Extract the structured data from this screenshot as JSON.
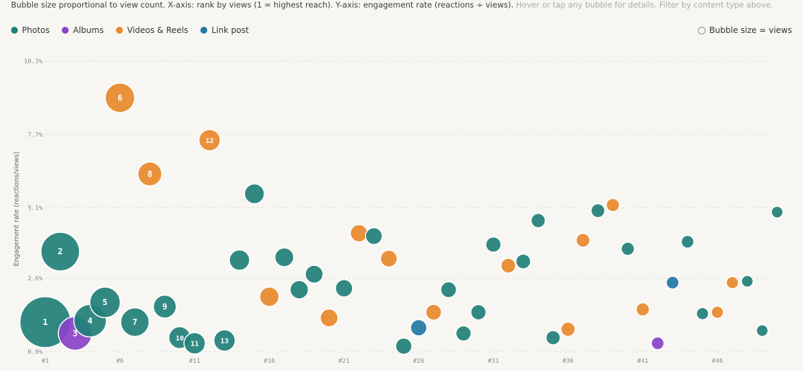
{
  "subtitle": {
    "text": "Bubble size proportional to view count. X-axis: rank by views (1 = highest reach). Y-axis: engagement rate (reactions ÷ views).",
    "hint": "Hover or tap any bubble for details. Filter by content type above."
  },
  "legend": [
    {
      "key": "photos",
      "label": "Photos",
      "color": "#21807a"
    },
    {
      "key": "albums",
      "label": "Albums",
      "color": "#8a44c8"
    },
    {
      "key": "videos",
      "label": "Videos & Reels",
      "color": "#e7892d"
    },
    {
      "key": "link",
      "label": "Link post",
      "color": "#2478a4"
    }
  ],
  "size_key": {
    "label": "Bubble size = views"
  },
  "chart_data": {
    "type": "scatter",
    "xlabel": "",
    "ylabel": "Engagement rate (reactions/views)",
    "xlim": [
      1,
      49.8
    ],
    "ylim": [
      0,
      10.3
    ],
    "x_ticks": [
      1,
      6,
      11,
      16,
      21,
      26,
      31,
      36,
      41,
      46
    ],
    "x_tick_labels": [
      "#1",
      "#6",
      "#11",
      "#16",
      "#21",
      "#26",
      "#31",
      "#36",
      "#41",
      "#46"
    ],
    "y_ticks": [
      0,
      2.6,
      5.1,
      7.7,
      10.3
    ],
    "y_tick_labels": [
      "0.0%",
      "2.6%",
      "5.1%",
      "7.7%",
      "10.3%"
    ],
    "grid": "horizontal-dashed",
    "points": [
      {
        "rank": 1,
        "rate": 1.05,
        "type": "photos",
        "label": "1",
        "size": 1.0
      },
      {
        "rank": 2,
        "rate": 3.55,
        "type": "photos",
        "label": "2",
        "size": 0.76
      },
      {
        "rank": 3,
        "rate": 0.65,
        "type": "albums",
        "label": "3",
        "size": 0.66
      },
      {
        "rank": 4,
        "rate": 1.1,
        "type": "photos",
        "label": "4",
        "size": 0.64
      },
      {
        "rank": 5,
        "rate": 1.75,
        "type": "photos",
        "label": "5",
        "size": 0.6
      },
      {
        "rank": 6,
        "rate": 9.0,
        "type": "videos",
        "label": "6",
        "size": 0.58
      },
      {
        "rank": 7,
        "rate": 1.05,
        "type": "photos",
        "label": "7",
        "size": 0.56
      },
      {
        "rank": 8,
        "rate": 6.3,
        "type": "videos",
        "label": "8",
        "size": 0.47
      },
      {
        "rank": 9,
        "rate": 1.6,
        "type": "photos",
        "label": "9",
        "size": 0.45
      },
      {
        "rank": 10,
        "rate": 0.5,
        "type": "photos",
        "label": "10",
        "size": 0.43
      },
      {
        "rank": 11,
        "rate": 0.3,
        "type": "photos",
        "label": "11",
        "size": 0.42
      },
      {
        "rank": 12,
        "rate": 7.5,
        "type": "videos",
        "label": "12",
        "size": 0.42
      },
      {
        "rank": 13,
        "rate": 0.4,
        "type": "photos",
        "label": "13",
        "size": 0.42
      },
      {
        "rank": 14,
        "rate": 3.25,
        "type": "photos",
        "label": "",
        "size": 0.4
      },
      {
        "rank": 15,
        "rate": 5.6,
        "type": "photos",
        "label": "",
        "size": 0.39
      },
      {
        "rank": 16,
        "rate": 1.95,
        "type": "videos",
        "label": "",
        "size": 0.38
      },
      {
        "rank": 17,
        "rate": 3.35,
        "type": "photos",
        "label": "",
        "size": 0.37
      },
      {
        "rank": 18,
        "rate": 2.2,
        "type": "photos",
        "label": "",
        "size": 0.36
      },
      {
        "rank": 19,
        "rate": 2.75,
        "type": "photos",
        "label": "",
        "size": 0.35
      },
      {
        "rank": 20,
        "rate": 1.2,
        "type": "videos",
        "label": "",
        "size": 0.35
      },
      {
        "rank": 21,
        "rate": 2.25,
        "type": "photos",
        "label": "",
        "size": 0.34
      },
      {
        "rank": 22,
        "rate": 4.2,
        "type": "videos",
        "label": "",
        "size": 0.34
      },
      {
        "rank": 23,
        "rate": 4.1,
        "type": "photos",
        "label": "",
        "size": 0.33
      },
      {
        "rank": 24,
        "rate": 3.3,
        "type": "videos",
        "label": "",
        "size": 0.33
      },
      {
        "rank": 25,
        "rate": 0.2,
        "type": "photos",
        "label": "",
        "size": 0.32
      },
      {
        "rank": 26,
        "rate": 0.85,
        "type": "link",
        "label": "",
        "size": 0.32
      },
      {
        "rank": 27,
        "rate": 1.4,
        "type": "videos",
        "label": "",
        "size": 0.31
      },
      {
        "rank": 28,
        "rate": 2.2,
        "type": "photos",
        "label": "",
        "size": 0.31
      },
      {
        "rank": 29,
        "rate": 0.65,
        "type": "photos",
        "label": "",
        "size": 0.3
      },
      {
        "rank": 30,
        "rate": 1.4,
        "type": "photos",
        "label": "",
        "size": 0.3
      },
      {
        "rank": 31,
        "rate": 3.8,
        "type": "photos",
        "label": "",
        "size": 0.3
      },
      {
        "rank": 32,
        "rate": 3.05,
        "type": "videos",
        "label": "",
        "size": 0.29
      },
      {
        "rank": 33,
        "rate": 3.2,
        "type": "photos",
        "label": "",
        "size": 0.29
      },
      {
        "rank": 34,
        "rate": 4.65,
        "type": "photos",
        "label": "",
        "size": 0.28
      },
      {
        "rank": 35,
        "rate": 0.5,
        "type": "photos",
        "label": "",
        "size": 0.28
      },
      {
        "rank": 36,
        "rate": 0.8,
        "type": "videos",
        "label": "",
        "size": 0.28
      },
      {
        "rank": 37,
        "rate": 3.95,
        "type": "videos",
        "label": "",
        "size": 0.27
      },
      {
        "rank": 38,
        "rate": 5.0,
        "type": "photos",
        "label": "",
        "size": 0.27
      },
      {
        "rank": 39,
        "rate": 5.2,
        "type": "videos",
        "label": "",
        "size": 0.26
      },
      {
        "rank": 40,
        "rate": 3.65,
        "type": "photos",
        "label": "",
        "size": 0.26
      },
      {
        "rank": 41,
        "rate": 1.5,
        "type": "videos",
        "label": "",
        "size": 0.26
      },
      {
        "rank": 42,
        "rate": 0.3,
        "type": "albums",
        "label": "",
        "size": 0.25
      },
      {
        "rank": 43,
        "rate": 2.45,
        "type": "link",
        "label": "",
        "size": 0.25
      },
      {
        "rank": 44,
        "rate": 3.9,
        "type": "photos",
        "label": "",
        "size": 0.25
      },
      {
        "rank": 45,
        "rate": 1.35,
        "type": "photos",
        "label": "",
        "size": 0.24
      },
      {
        "rank": 46,
        "rate": 1.4,
        "type": "videos",
        "label": "",
        "size": 0.24
      },
      {
        "rank": 47,
        "rate": 2.45,
        "type": "videos",
        "label": "",
        "size": 0.24
      },
      {
        "rank": 48,
        "rate": 2.5,
        "type": "photos",
        "label": "",
        "size": 0.23
      },
      {
        "rank": 49,
        "rate": 0.75,
        "type": "photos",
        "label": "",
        "size": 0.23
      },
      {
        "rank": 50,
        "rate": 4.95,
        "type": "photos",
        "label": "",
        "size": 0.23
      }
    ]
  }
}
